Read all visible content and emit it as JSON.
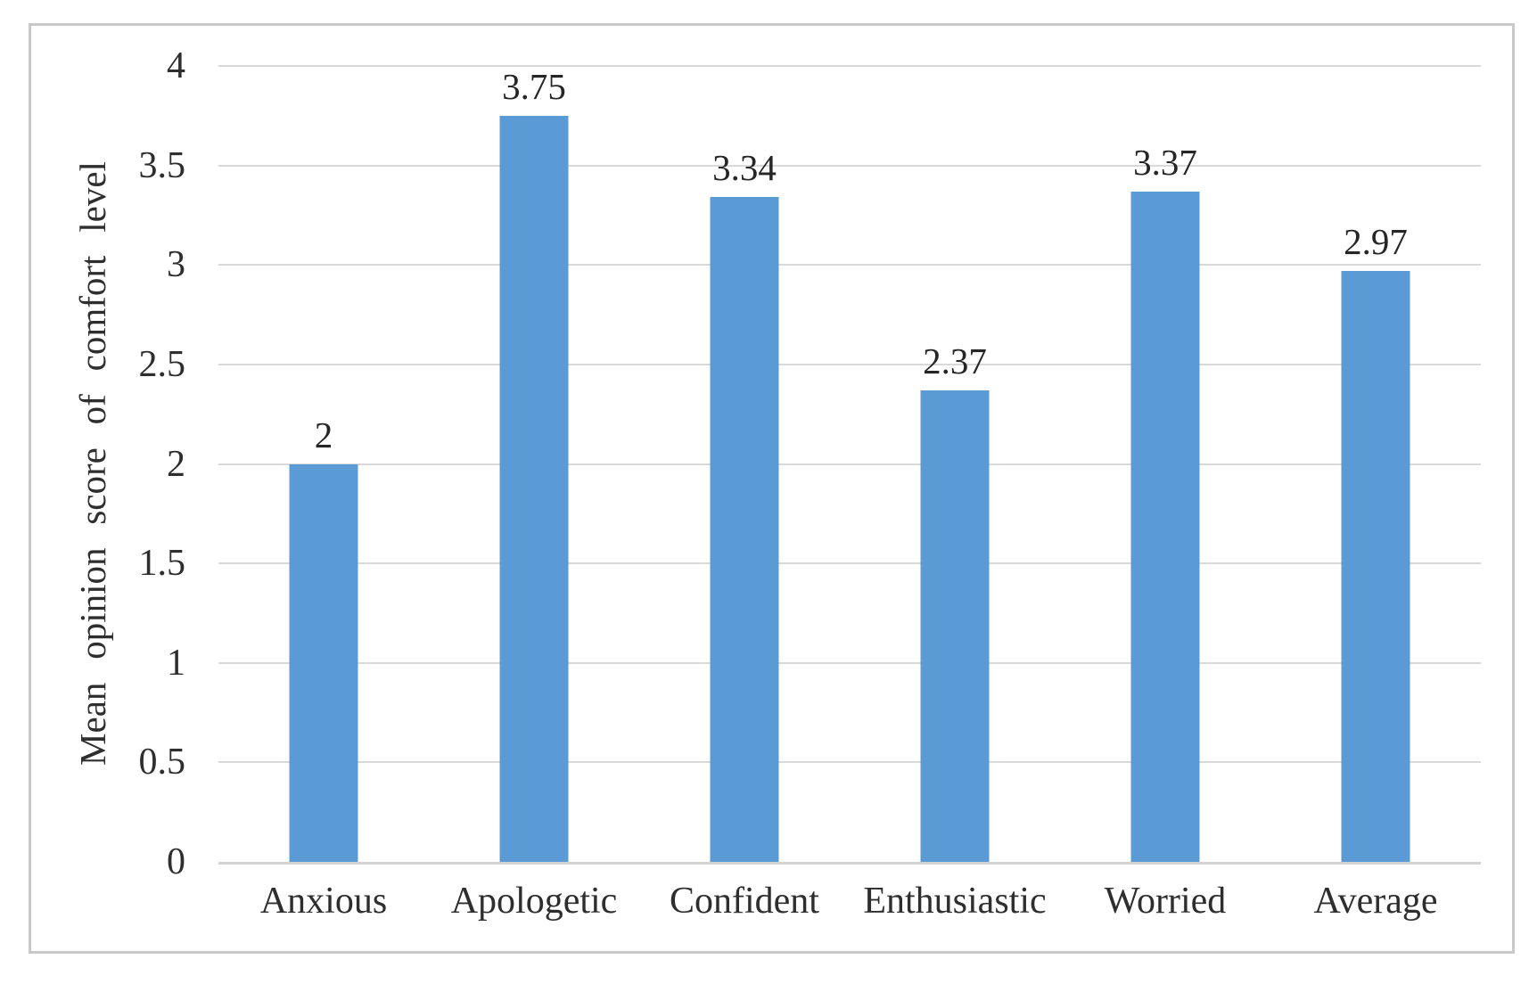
{
  "chart_data": {
    "type": "bar",
    "title": "",
    "xlabel": "",
    "ylabel": "Mean opinion score of comfort level",
    "categories": [
      "Anxious",
      "Apologetic",
      "Confident",
      "Enthusiastic",
      "Worried",
      "Average"
    ],
    "values": [
      2,
      3.75,
      3.34,
      2.37,
      3.37,
      2.97
    ],
    "data_labels": [
      "2",
      "3.75",
      "3.34",
      "2.37",
      "3.37",
      "2.97"
    ],
    "ylim": [
      0,
      4
    ],
    "ytick_step": 0.5,
    "yticks": [
      {
        "value": 4,
        "label": "4"
      },
      {
        "value": 3.5,
        "label": "3.5"
      },
      {
        "value": 3,
        "label": "3"
      },
      {
        "value": 2.5,
        "label": "2.5"
      },
      {
        "value": 2,
        "label": "2"
      },
      {
        "value": 1.5,
        "label": "1.5"
      },
      {
        "value": 1,
        "label": "1"
      },
      {
        "value": 0.5,
        "label": "0.5"
      },
      {
        "value": 0,
        "label": "0"
      }
    ],
    "grid": "horizontal",
    "legend": "none",
    "colors": {
      "bar": "#5b9bd5",
      "gridline": "#d9d9d9",
      "axis_line": "#d2d2d2",
      "frame_border": "#c9c9c9",
      "text": "#2e2e2e"
    }
  }
}
